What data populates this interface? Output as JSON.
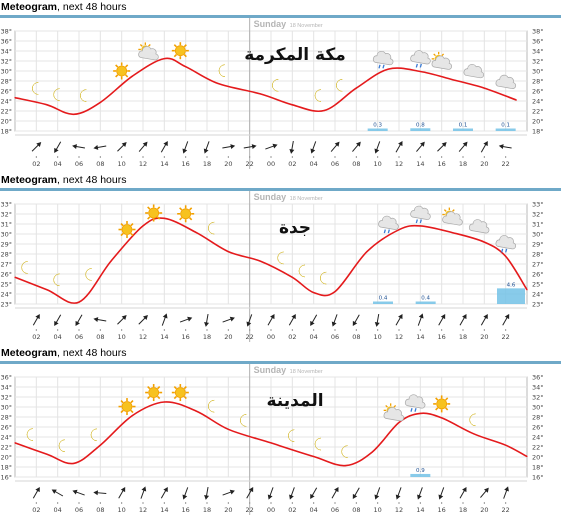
{
  "colors": {
    "curve": "#e41a1c",
    "grid": "#e4e4e4",
    "frame": "#b8b8b8",
    "axis_text": "#444444",
    "header_rule": "#6fa9c8",
    "precip": "#73c2e6",
    "sun": "#f2a000",
    "moon": "#e9cf3c",
    "cloud": "#c9c9c9"
  },
  "panels": [
    {
      "header_bold": "Meteogram",
      "header_rest": ", next 48 hours",
      "day_label": "Sunday",
      "date_label": "18 November",
      "city_label": "مكة المكرمة",
      "chart_data": {
        "type": "line",
        "ylabel": "",
        "ylim": [
          18,
          39
        ],
        "y_ticks": [
          "18°",
          "20°",
          "22°",
          "24°",
          "26°",
          "28°",
          "30°",
          "32°",
          "34°",
          "36°",
          "38°"
        ],
        "x_ticks": [
          "02",
          "04",
          "06",
          "08",
          "10",
          "12",
          "14",
          "16",
          "18",
          "20",
          "22",
          "00",
          "02",
          "04",
          "06",
          "08",
          "10",
          "12",
          "14",
          "16",
          "18",
          "20",
          "22"
        ],
        "series": [
          {
            "hours": [
              0,
              3,
              5.5,
              8,
              11,
              14,
              16,
              19,
              23,
              26,
              29,
              32,
              35,
              38,
              41,
              44,
              47
            ],
            "values": [
              25,
              23.5,
              21.5,
              24,
              29.5,
              33.2,
              31.5,
              28,
              25.8,
              23.5,
              22.3,
              27,
              31,
              30.5,
              28.8,
              27,
              24.5
            ]
          }
        ],
        "weather_icons": [
          {
            "hour": 2,
            "icon": "moon-icon"
          },
          {
            "hour": 4,
            "icon": "moon-icon"
          },
          {
            "hour": 6.5,
            "icon": "moon-icon"
          },
          {
            "hour": 10,
            "icon": "sun-icon"
          },
          {
            "hour": 12.5,
            "icon": "sun-cloud-icon"
          },
          {
            "hour": 15.5,
            "icon": "sun-icon"
          },
          {
            "hour": 19.5,
            "icon": "moon-icon"
          },
          {
            "hour": 24.5,
            "icon": "moon-icon"
          },
          {
            "hour": 28.5,
            "icon": "moon-icon"
          },
          {
            "hour": 30.5,
            "icon": "moon-icon"
          },
          {
            "hour": 34.5,
            "icon": "rain-cloud-icon"
          },
          {
            "hour": 38,
            "icon": "rain-cloud-icon"
          },
          {
            "hour": 40,
            "icon": "sun-cloud-icon"
          },
          {
            "hour": 43,
            "icon": "moon-cloud-icon"
          },
          {
            "hour": 46,
            "icon": "moon-cloud-icon"
          }
        ],
        "precip": [
          {
            "hour": 34,
            "value": "0.3",
            "mm": 0.3
          },
          {
            "hour": 38,
            "value": "0.8",
            "mm": 0.8
          },
          {
            "hour": 42,
            "value": "0.1",
            "mm": 0.1
          },
          {
            "hour": 46,
            "value": "0.1",
            "mm": 0.1
          }
        ],
        "wind_degrees": [
          45,
          210,
          280,
          260,
          45,
          40,
          30,
          200,
          200,
          80,
          80,
          70,
          190,
          200,
          40,
          40,
          200,
          30,
          40,
          45,
          40,
          30,
          280
        ]
      }
    },
    {
      "header_bold": "Meteogram",
      "header_rest": ", next 48 hours",
      "day_label": "Sunday",
      "date_label": "18 November",
      "city_label": "جدة",
      "chart_data": {
        "type": "line",
        "ylabel": "",
        "ylim": [
          23,
          33.5
        ],
        "y_ticks": [
          "23°",
          "24°",
          "25°",
          "26°",
          "27°",
          "28°",
          "29°",
          "30°",
          "31°",
          "32°",
          "33°"
        ],
        "x_ticks": [
          "02",
          "04",
          "06",
          "08",
          "10",
          "12",
          "14",
          "16",
          "18",
          "20",
          "22",
          "00",
          "02",
          "04",
          "06",
          "08",
          "10",
          "12",
          "14",
          "16",
          "18",
          "20",
          "22"
        ],
        "series": [
          {
            "hours": [
              0,
              3,
              6,
              9,
              12,
              14,
              17,
              20,
              23,
              26,
              28,
              30,
              33,
              36,
              38,
              41,
              44,
              46,
              48
            ],
            "values": [
              25.8,
              24.5,
              23.2,
              27.5,
              31.2,
              32,
              30.5,
              28.5,
              27.5,
              25.8,
              24.2,
              24.3,
              28.5,
              30.8,
              31.2,
              30.5,
              29.5,
              28,
              24.5
            ]
          }
        ],
        "weather_icons": [
          {
            "hour": 1,
            "icon": "moon-icon"
          },
          {
            "hour": 4,
            "icon": "moon-icon"
          },
          {
            "hour": 7,
            "icon": "moon-icon"
          },
          {
            "hour": 10.5,
            "icon": "sun-icon"
          },
          {
            "hour": 13,
            "icon": "sun-icon"
          },
          {
            "hour": 16,
            "icon": "sun-icon"
          },
          {
            "hour": 18.5,
            "icon": "moon-icon"
          },
          {
            "hour": 25,
            "icon": "moon-icon"
          },
          {
            "hour": 27,
            "icon": "moon-icon"
          },
          {
            "hour": 29,
            "icon": "moon-icon"
          },
          {
            "hour": 35,
            "icon": "rain-cloud-icon"
          },
          {
            "hour": 38,
            "icon": "rain-cloud-icon"
          },
          {
            "hour": 41,
            "icon": "sun-cloud-icon"
          },
          {
            "hour": 43.5,
            "icon": "moon-cloud-icon"
          },
          {
            "hour": 46,
            "icon": "rain-cloud-icon"
          }
        ],
        "precip": [
          {
            "hour": 34.5,
            "value": "0.4",
            "mm": 0.4
          },
          {
            "hour": 38.5,
            "value": "0.4",
            "mm": 0.4
          },
          {
            "hour": 46.5,
            "value": "4.6",
            "mm": 4.6
          }
        ],
        "wind_degrees": [
          30,
          210,
          210,
          280,
          45,
          45,
          20,
          70,
          190,
          70,
          200,
          30,
          30,
          210,
          200,
          210,
          190,
          30,
          20,
          30,
          30,
          30,
          30
        ]
      }
    },
    {
      "header_bold": "Meteogram",
      "header_rest": ", next 48 hours",
      "day_label": "Sunday",
      "date_label": "18 November",
      "city_label": "المدينة",
      "chart_data": {
        "type": "line",
        "ylabel": "",
        "ylim": [
          15,
          37
        ],
        "y_ticks": [
          "16°",
          "18°",
          "20°",
          "22°",
          "24°",
          "26°",
          "28°",
          "30°",
          "32°",
          "34°",
          "36°"
        ],
        "x_ticks": [
          "02",
          "04",
          "06",
          "08",
          "10",
          "12",
          "14",
          "16",
          "18",
          "20",
          "22",
          "00",
          "02",
          "04",
          "06",
          "08",
          "10",
          "12",
          "14",
          "16",
          "18",
          "20",
          "22"
        ],
        "series": [
          {
            "hours": [
              0,
              3,
              5.5,
              8,
              11,
              14,
              17,
              20,
              24,
              28,
              31,
              33.5,
              36,
              38,
              40,
              43,
              46,
              48
            ],
            "values": [
              22.5,
              20,
              18,
              22,
              28.5,
              31.5,
              29.5,
              25.5,
              22.5,
              19.5,
              17.5,
              20.5,
              27,
              29,
              28,
              24.5,
              22,
              19.5
            ]
          }
        ],
        "weather_icons": [
          {
            "hour": 1.5,
            "icon": "moon-icon"
          },
          {
            "hour": 4.5,
            "icon": "moon-icon"
          },
          {
            "hour": 7.5,
            "icon": "moon-icon"
          },
          {
            "hour": 10.5,
            "icon": "sun-icon"
          },
          {
            "hour": 13,
            "icon": "sun-icon"
          },
          {
            "hour": 15.5,
            "icon": "sun-icon"
          },
          {
            "hour": 18.5,
            "icon": "moon-icon"
          },
          {
            "hour": 21.5,
            "icon": "moon-icon"
          },
          {
            "hour": 26,
            "icon": "moon-icon"
          },
          {
            "hour": 28.5,
            "icon": "moon-icon"
          },
          {
            "hour": 31,
            "icon": "moon-icon"
          },
          {
            "hour": 35.5,
            "icon": "sun-cloud-icon"
          },
          {
            "hour": 37.5,
            "icon": "rain-cloud-icon"
          },
          {
            "hour": 40,
            "icon": "sun-icon"
          },
          {
            "hour": 43,
            "icon": "moon-icon"
          }
        ],
        "precip": [
          {
            "hour": 38,
            "value": "0.9",
            "mm": 0.9
          }
        ],
        "wind_degrees": [
          30,
          300,
          290,
          275,
          30,
          20,
          30,
          200,
          190,
          70,
          30,
          200,
          200,
          210,
          30,
          210,
          200,
          200,
          200,
          200,
          30,
          40,
          20
        ]
      }
    }
  ]
}
